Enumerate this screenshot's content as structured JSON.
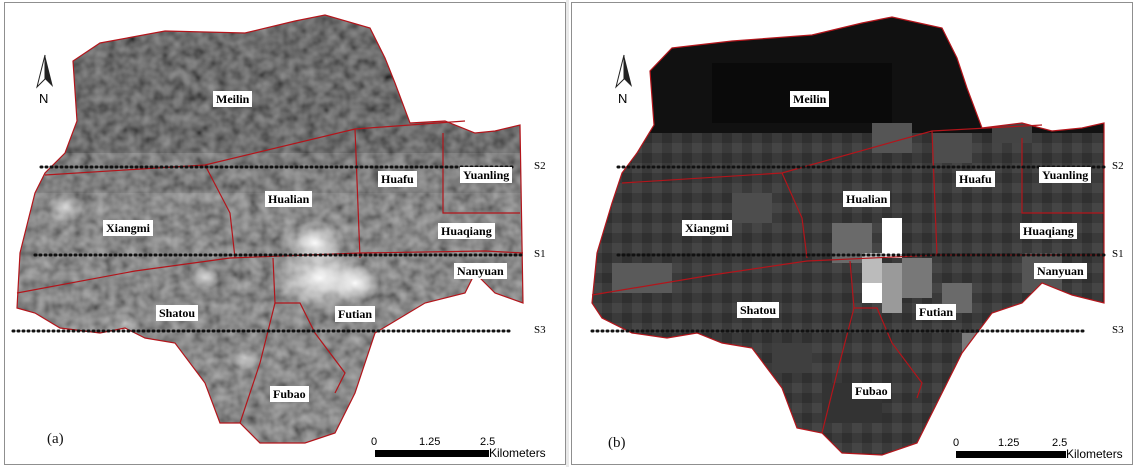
{
  "panels": [
    {
      "label": "(a)",
      "north": "N",
      "districts": [
        "Meilin",
        "Huafu",
        "Yuanling",
        "Hualian",
        "Xiangmi",
        "Huaqiang",
        "Nanyuan",
        "Shatou",
        "Futian",
        "Fubao"
      ],
      "lines": [
        "S2",
        "S1",
        "S3"
      ],
      "scale": {
        "ticks": [
          "0",
          "1.25",
          "2.5"
        ],
        "unit": "Kilometers"
      }
    },
    {
      "label": "(b)",
      "north": "N",
      "districts": [
        "Meilin",
        "Huafu",
        "Yuanling",
        "Hualian",
        "Xiangmi",
        "Huaqiang",
        "Nanyuan",
        "Shatou",
        "Futian",
        "Fubao"
      ],
      "lines": [
        "S2",
        "S1",
        "S3"
      ],
      "scale": {
        "ticks": [
          "0",
          "1.25",
          "2.5"
        ],
        "unit": "Kilometers"
      }
    }
  ],
  "colors": {
    "boundary": "#b3151b",
    "transect": "#111111"
  }
}
